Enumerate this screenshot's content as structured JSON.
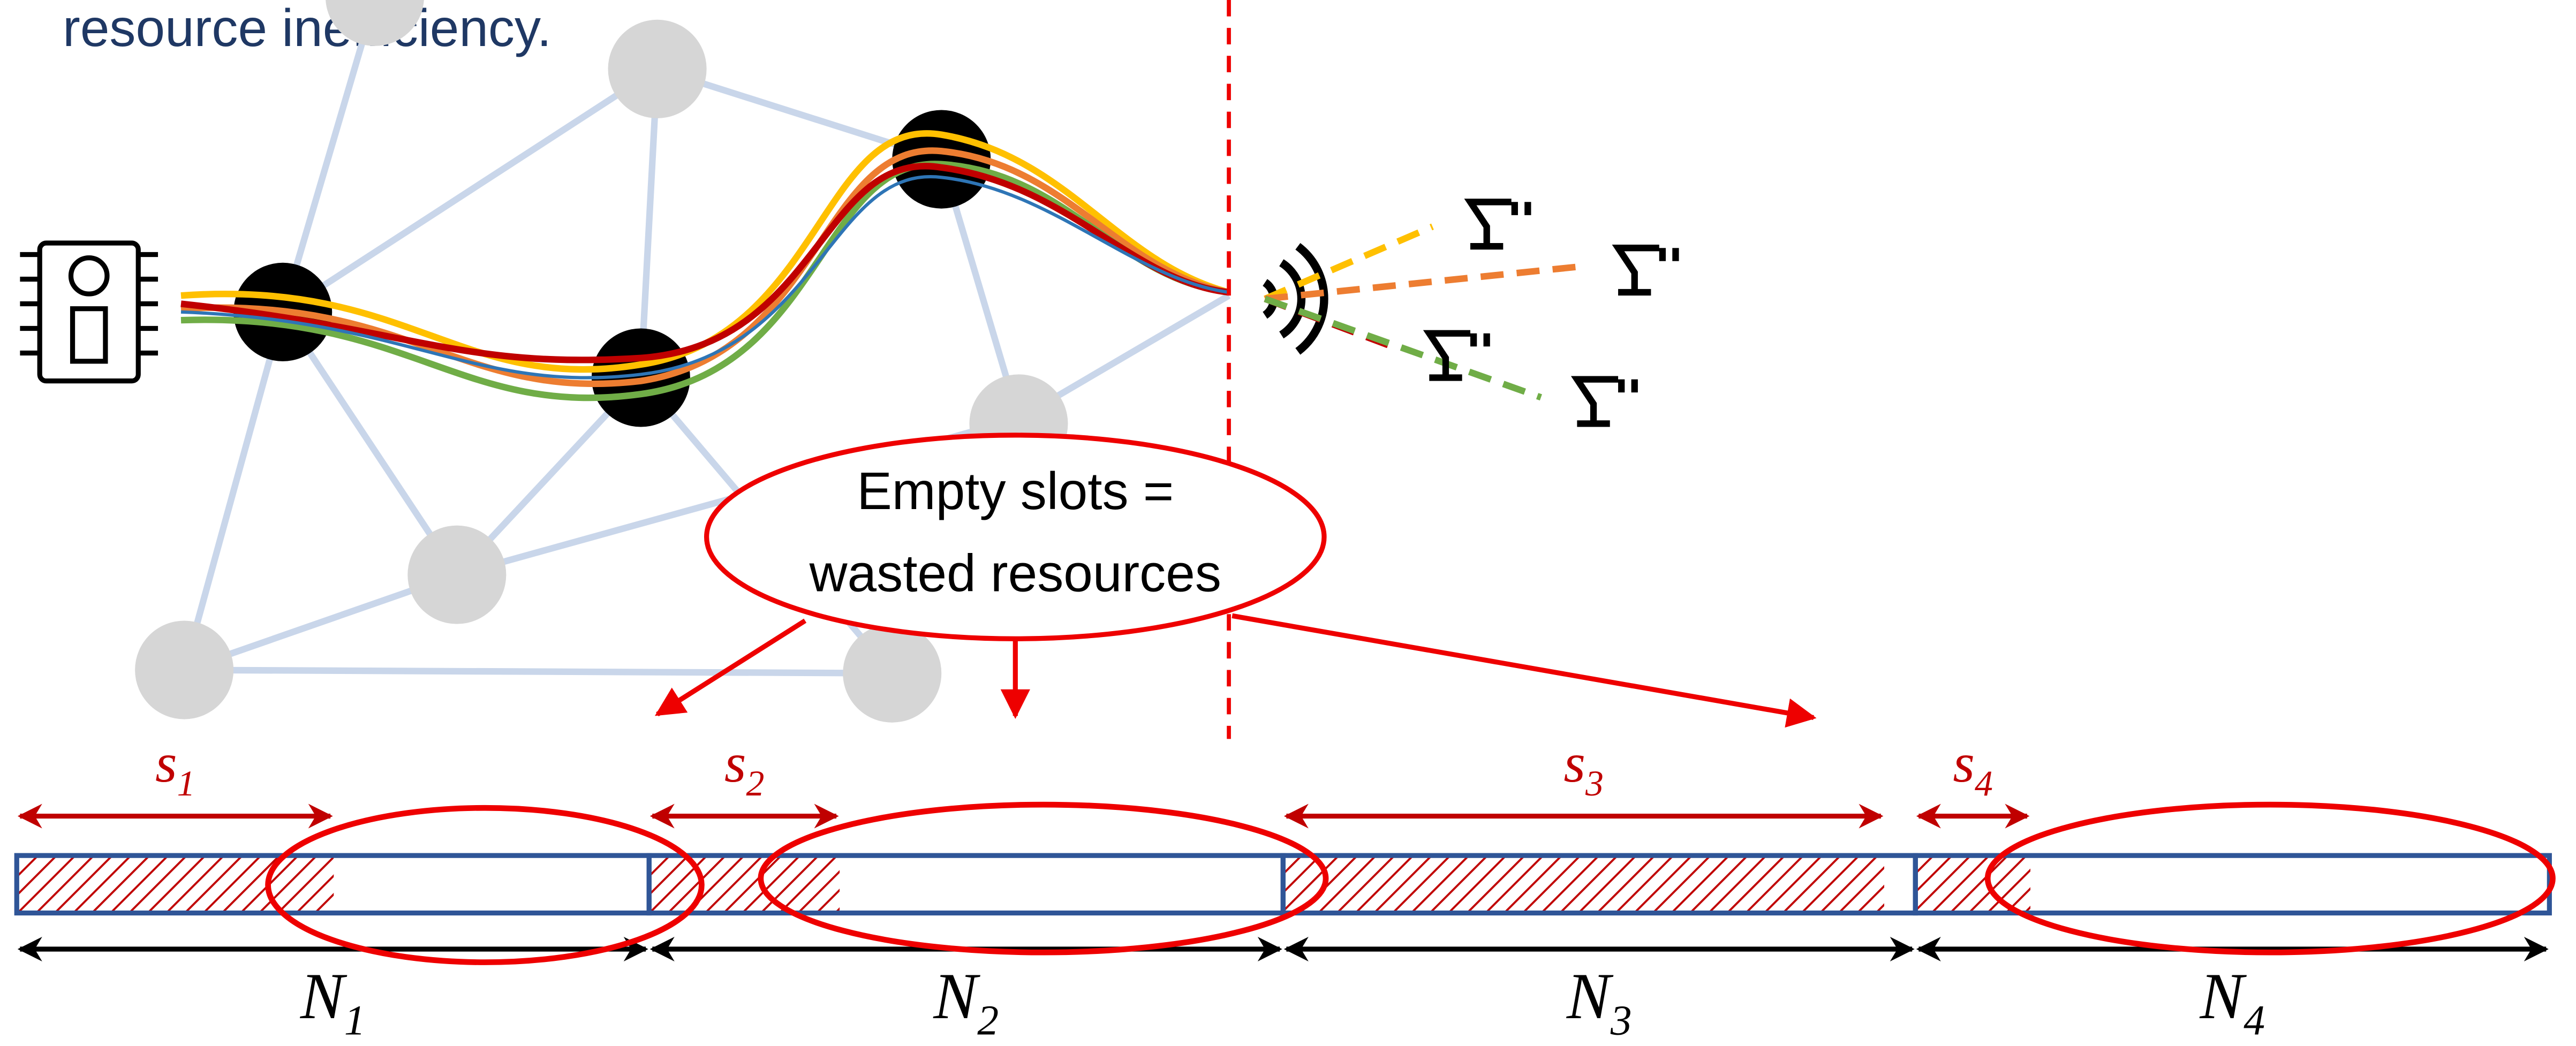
{
  "caption": "resource inefficiency.",
  "callout": {
    "lines": [
      "Empty slots =",
      "wasted resources"
    ]
  },
  "segments": [
    {
      "s_label": {
        "letter": "s",
        "sub": "1"
      },
      "n_label": {
        "letter": "N",
        "sub": "1"
      }
    },
    {
      "s_label": {
        "letter": "s",
        "sub": "2"
      },
      "n_label": {
        "letter": "N",
        "sub": "2"
      }
    },
    {
      "s_label": {
        "letter": "s",
        "sub": "3"
      },
      "n_label": {
        "letter": "N",
        "sub": "3"
      }
    },
    {
      "s_label": {
        "letter": "s",
        "sub": "4"
      },
      "n_label": {
        "letter": "N",
        "sub": "4"
      }
    }
  ]
}
